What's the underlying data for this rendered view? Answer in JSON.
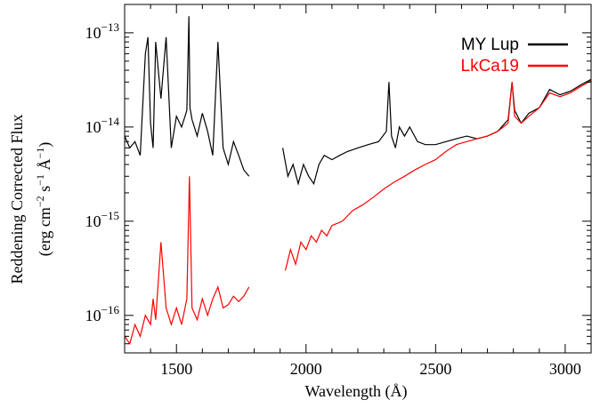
{
  "chart_data": {
    "type": "line",
    "xlabel": "Wavelength (Å)",
    "ylabel_line1": "Reddening Corrected Flux",
    "ylabel_line2_parts": {
      "open": "(erg cm",
      "exp1": "−2",
      "s": " s",
      "exp2": "−1",
      "A": " Å",
      "exp3": "−1",
      "close": ")"
    },
    "xlim": [
      1300,
      3100
    ],
    "ylim": [
      4e-17,
      2e-13
    ],
    "yscale": "log",
    "x_ticks": [
      {
        "value": 1500,
        "label": "1500"
      },
      {
        "value": 2000,
        "label": "2000"
      },
      {
        "value": 2500,
        "label": "2500"
      },
      {
        "value": 3000,
        "label": "3000"
      }
    ],
    "y_ticks": [
      {
        "value": 1e-13,
        "base": "10",
        "exp": "−13"
      },
      {
        "value": 1e-14,
        "base": "10",
        "exp": "−14"
      },
      {
        "value": 1e-15,
        "base": "10",
        "exp": "−15"
      },
      {
        "value": 1e-16,
        "base": "10",
        "exp": "−16"
      }
    ],
    "legend_position": "top-right",
    "series": [
      {
        "name": "MY Lup",
        "color": "#000000",
        "segments": [
          {
            "x": [
              1300,
              1320,
              1340,
              1360,
              1380,
              1390,
              1400,
              1410,
              1420,
              1440,
              1460,
              1480,
              1500,
              1520,
              1540,
              1548,
              1552,
              1560,
              1580,
              1600,
              1620,
              1640,
              1660,
              1680,
              1700,
              1720,
              1740,
              1760,
              1780
            ],
            "y": [
              8e-15,
              6e-15,
              7e-15,
              5e-15,
              6e-14,
              9e-14,
              1.1e-14,
              6e-15,
              8e-14,
              2e-14,
              9e-14,
              6e-15,
              1.3e-14,
              1e-14,
              1.5e-14,
              1.5e-13,
              1.6e-14,
              1.2e-14,
              8e-15,
              1.4e-14,
              9e-15,
              5e-15,
              8e-14,
              6e-15,
              4e-15,
              7e-15,
              5e-15,
              3.5e-15,
              3e-15
            ]
          },
          {
            "x": [
              1910,
              1930,
              1950,
              1970,
              1990,
              2010,
              2030,
              2050,
              2070,
              2100,
              2130,
              2160,
              2200,
              2240,
              2280,
              2310,
              2320,
              2330,
              2345,
              2360,
              2380,
              2400,
              2430,
              2460,
              2500,
              2540,
              2580,
              2620,
              2660,
              2700,
              2740,
              2780,
              2795,
              2805,
              2830,
              2860,
              2900,
              2940,
              2980,
              3020,
              3060,
              3100
            ],
            "y": [
              6e-15,
              3e-15,
              4e-15,
              2.5e-15,
              4e-15,
              3e-15,
              2.5e-15,
              4e-15,
              5e-15,
              4.5e-15,
              5e-15,
              5.5e-15,
              6e-15,
              6.5e-15,
              7e-15,
              9e-15,
              3e-14,
              8e-15,
              6e-15,
              1e-14,
              8e-15,
              1e-14,
              7e-15,
              6.5e-15,
              6.5e-15,
              7e-15,
              7.5e-15,
              8e-15,
              7.5e-15,
              8e-15,
              9e-15,
              1.2e-14,
              3e-14,
              1.5e-14,
              1.1e-14,
              1.4e-14,
              1.6e-14,
              2.5e-14,
              2.2e-14,
              2.4e-14,
              2.8e-14,
              3.2e-14
            ]
          }
        ]
      },
      {
        "name": "LkCa19",
        "color": "#ff0000",
        "segments": [
          {
            "x": [
              1300,
              1320,
              1340,
              1360,
              1380,
              1400,
              1410,
              1420,
              1440,
              1460,
              1480,
              1500,
              1520,
              1540,
              1550,
              1560,
              1580,
              1600,
              1620,
              1640,
              1660,
              1680,
              1700,
              1720,
              1740,
              1760,
              1780
            ],
            "y": [
              6e-17,
              5e-17,
              8e-17,
              6e-17,
              1e-16,
              8e-17,
              1.5e-16,
              9e-17,
              6e-16,
              1.2e-16,
              8e-17,
              1.2e-16,
              8e-17,
              1.5e-16,
              3e-15,
              1.2e-16,
              9e-17,
              1.5e-16,
              1e-16,
              1.5e-16,
              2e-16,
              1.2e-16,
              1.3e-16,
              1.6e-16,
              1.4e-16,
              1.6e-16,
              2e-16
            ]
          },
          {
            "x": [
              1920,
              1940,
              1960,
              1980,
              2000,
              2020,
              2040,
              2060,
              2080,
              2100,
              2140,
              2180,
              2220,
              2260,
              2300,
              2340,
              2380,
              2420,
              2460,
              2500,
              2540,
              2580,
              2620,
              2660,
              2700,
              2740,
              2780,
              2795,
              2805,
              2830,
              2860,
              2900,
              2940,
              2980,
              3020,
              3060,
              3100
            ],
            "y": [
              3e-16,
              5e-16,
              3.5e-16,
              6e-16,
              5e-16,
              7e-16,
              6e-16,
              8e-16,
              7e-16,
              9e-16,
              1e-15,
              1.3e-15,
              1.5e-15,
              1.8e-15,
              2.2e-15,
              2.6e-15,
              3e-15,
              3.5e-15,
              4e-15,
              4.5e-15,
              5.5e-15,
              6.5e-15,
              7e-15,
              7.5e-15,
              8e-15,
              9e-15,
              1.1e-14,
              3e-14,
              1.3e-14,
              1.1e-14,
              1.3e-14,
              1.6e-14,
              2.3e-14,
              2.1e-14,
              2.3e-14,
              2.7e-14,
              3.1e-14
            ]
          }
        ]
      }
    ]
  }
}
